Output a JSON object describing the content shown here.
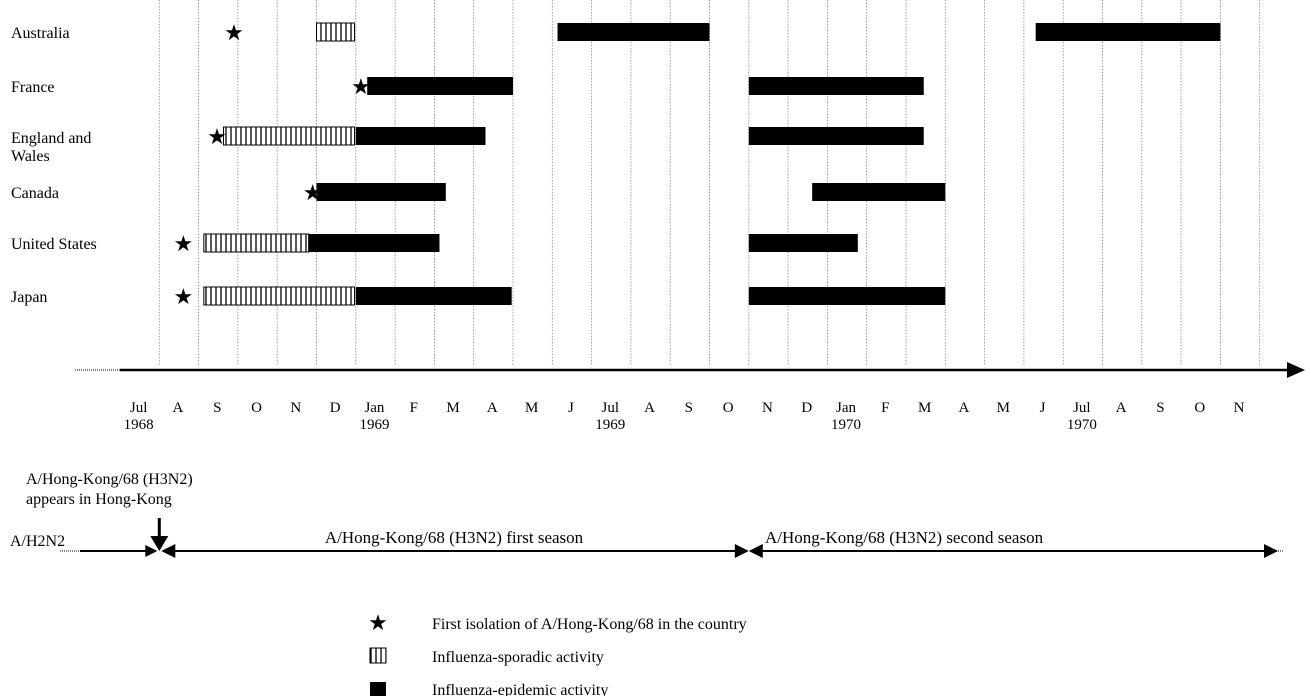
{
  "chart_data": {
    "type": "timeline",
    "months": [
      {
        "label": "Jul",
        "year": "1968"
      },
      {
        "label": "A",
        "year": ""
      },
      {
        "label": "S",
        "year": ""
      },
      {
        "label": "O",
        "year": ""
      },
      {
        "label": "N",
        "year": ""
      },
      {
        "label": "D",
        "year": ""
      },
      {
        "label": "Jan",
        "year": "1969"
      },
      {
        "label": "F",
        "year": ""
      },
      {
        "label": "M",
        "year": ""
      },
      {
        "label": "A",
        "year": ""
      },
      {
        "label": "M",
        "year": ""
      },
      {
        "label": "J",
        "year": ""
      },
      {
        "label": "Jul",
        "year": "1969"
      },
      {
        "label": "A",
        "year": ""
      },
      {
        "label": "S",
        "year": ""
      },
      {
        "label": "O",
        "year": ""
      },
      {
        "label": "N",
        "year": ""
      },
      {
        "label": "D",
        "year": ""
      },
      {
        "label": "Jan",
        "year": "1970"
      },
      {
        "label": "F",
        "year": ""
      },
      {
        "label": "M",
        "year": ""
      },
      {
        "label": "A",
        "year": ""
      },
      {
        "label": "M",
        "year": ""
      },
      {
        "label": "J",
        "year": ""
      },
      {
        "label": "Jul",
        "year": "1970"
      },
      {
        "label": "A",
        "year": ""
      },
      {
        "label": "S",
        "year": ""
      },
      {
        "label": "O",
        "year": ""
      },
      {
        "label": "N",
        "year": ""
      }
    ],
    "countries": [
      {
        "name": "Australia",
        "first_isolation": "1968-09-28",
        "sporadic": [
          [
            "1968-12-01",
            "1968-12-31"
          ]
        ],
        "epidemic": [
          [
            "1969-06-05",
            "1969-10-01"
          ],
          [
            "1970-06-10",
            "1970-11-01"
          ]
        ]
      },
      {
        "name": "France",
        "first_isolation": "1969-01-05",
        "sporadic": [],
        "epidemic": [
          [
            "1969-01-10",
            "1969-05-01"
          ],
          [
            "1969-11-01",
            "1970-03-15"
          ]
        ]
      },
      {
        "name": "England and Wales",
        "first_isolation": "1968-09-15",
        "sporadic": [
          [
            "1968-09-20",
            "1968-12-31"
          ]
        ],
        "epidemic": [
          [
            "1969-01-01",
            "1969-04-10"
          ],
          [
            "1969-11-01",
            "1970-03-15"
          ]
        ]
      },
      {
        "name": "Canada",
        "first_isolation": "1968-11-28",
        "sporadic": [],
        "epidemic": [
          [
            "1968-12-01",
            "1969-03-10"
          ],
          [
            "1969-12-20",
            "1970-04-01"
          ]
        ]
      },
      {
        "name": "United States",
        "first_isolation": "1968-08-20",
        "sporadic": [
          [
            "1968-09-05",
            "1968-11-25"
          ]
        ],
        "epidemic": [
          [
            "1968-11-25",
            "1969-03-05"
          ],
          [
            "1969-11-01",
            "1970-01-25"
          ]
        ]
      },
      {
        "name": "Japan",
        "first_isolation": "1968-08-20",
        "sporadic": [
          [
            "1968-09-05",
            "1968-12-31"
          ]
        ],
        "epidemic": [
          [
            "1969-01-01",
            "1969-04-30"
          ],
          [
            "1969-11-01",
            "1970-04-01"
          ]
        ]
      }
    ],
    "seasons": [
      {
        "label": "A/H2N2",
        "start": "1968-06-20",
        "end": "1968-08-01",
        "prior": true
      },
      {
        "label": "A/Hong-Kong/68 (H3N2) first season",
        "start": "1968-08-01",
        "end": "1969-11-01"
      },
      {
        "label": "A/Hong-Kong/68 (H3N2) second season",
        "start": "1969-11-01",
        "end": "1970-12-01"
      }
    ],
    "emergence": {
      "date": "1968-08-01",
      "label_line1": "A/Hong-Kong/68 (H3N2)",
      "label_line2": "appears in Hong-Kong"
    },
    "legend": [
      {
        "kind": "star",
        "label": "First isolation of A/Hong-Kong/68 in the country"
      },
      {
        "kind": "sporadic",
        "label": "Influenza-sporadic activity"
      },
      {
        "kind": "epidemic",
        "label": "Influenza-epidemic activity"
      }
    ],
    "colors": {
      "epidemic": "#000000",
      "grid": "#8a8a8a",
      "hatch": "#000000"
    }
  }
}
